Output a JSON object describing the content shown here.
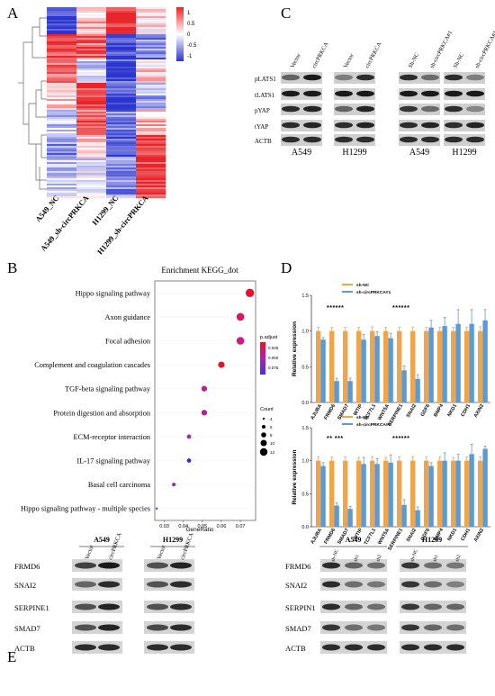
{
  "panels": {
    "A": {
      "letter": "A",
      "columns": [
        "A549_NC",
        "A549_sh-circPRKCA",
        "H1299_NC",
        "H1299_sh-circPRKCA"
      ],
      "colorbar": {
        "ticks": [
          "1",
          "0.5",
          "0",
          "-0.5",
          "-1"
        ],
        "colors": {
          "high": "#e8252a",
          "mid": "#ffffff",
          "low": "#2b35cf"
        }
      }
    },
    "B": {
      "letter": "B",
      "title": "Enrichment KEGG_dot",
      "xlabel": "GeneRatio",
      "legend_padj_title": "p.adjust",
      "legend_padj_ticks": [
        "0.025",
        "0.050",
        "0.075"
      ],
      "legend_count_title": "Count",
      "legend_count_values": [
        "4",
        "6",
        "8",
        "10",
        "12"
      ]
    },
    "C": {
      "letter": "C",
      "left_lanes": [
        "Vector",
        "circPRKCA",
        "Vector",
        "circPRKCA"
      ],
      "right_lanes": [
        "Sh-NC",
        "sh-circPRKCA#1",
        "Sh-NC",
        "sh-circPRKCA#1"
      ],
      "proteins": [
        "pLATS1",
        "tLATS1",
        "pYAP",
        "tYAP",
        "ACTB"
      ],
      "cell_lines": [
        "A549",
        "H1299",
        "A549",
        "H1299"
      ]
    },
    "D": {
      "letter": "D",
      "ylabel": "Relative expression",
      "legend": [
        "sh-NC",
        "sh-circPRKCA#1"
      ],
      "significance_top": [
        "******",
        "******"
      ],
      "significance_bottom": [
        "** ***",
        "******"
      ]
    },
    "E": {
      "letter": "E",
      "left_cells": [
        "A549",
        "H1299"
      ],
      "left_lanes": [
        "Vector",
        "circPRKCA",
        "Vector",
        "circPRKCA"
      ],
      "right_cells": [
        "A549",
        "H1299"
      ],
      "right_lanes": [
        "sh-NC",
        "sh1",
        "sh2",
        "sh-NC",
        "sh1",
        "sh2"
      ],
      "proteins": [
        "FRMD6",
        "SNAI2",
        "SERPINE1",
        "SMAD7",
        "ACTB"
      ],
      "proteins_right": [
        "FRMD6",
        "SNAI2",
        "SERPIN1",
        "SMAD7",
        "ACTB"
      ]
    }
  },
  "chart_data": [
    {
      "type": "scatter",
      "title": "Enrichment KEGG_dot",
      "xlabel": "GeneRatio",
      "xlim": [
        0.025,
        0.078
      ],
      "xticks": [
        "0.03",
        "0.04",
        "0.05",
        "0.06",
        "0.07"
      ],
      "categories": [
        "Hippo signaling pathway",
        "Axon guidance",
        "Focal adhesion",
        "Complement and coagulation cascades",
        "TGF-beta signaling pathway",
        "Protein digestion and absorption",
        "ECM-receptor interaction",
        "IL-17 signaling pathway",
        "Basal cell carcinoma",
        "Hippo signaling pathway - multiple species"
      ],
      "gene_ratio": [
        0.075,
        0.07,
        0.07,
        0.06,
        0.051,
        0.051,
        0.043,
        0.043,
        0.035,
        0.026
      ],
      "count": [
        13,
        12,
        12,
        10,
        9,
        9,
        7,
        7,
        6,
        4
      ],
      "p_adjust_color": [
        "#e8102a",
        "#d8156a",
        "#cf1a80",
        "#e8102a",
        "#c21d96",
        "#b2209e",
        "#9a27b6",
        "#2a2ed6",
        "#9a27b6",
        "#5a2fe0"
      ]
    },
    {
      "type": "bar",
      "ylabel": "Relative expression",
      "ylim": [
        0,
        1.5
      ],
      "yticks": [
        "0.0",
        "0.5",
        "1.0",
        "1.5"
      ],
      "categories": [
        "AJUBA",
        "FRMD6",
        "SMAD7",
        "WTIP",
        "TCF7L1",
        "WNT5A",
        "SERPINE1",
        "SNAI2",
        "GDF6",
        "BMP4",
        "NKD1",
        "CDH1",
        "AXIN2"
      ],
      "series": [
        {
          "name": "sh-NC",
          "values": [
            1.0,
            1.0,
            1.0,
            1.0,
            1.0,
            1.0,
            1.0,
            1.0,
            1.0,
            1.0,
            1.0,
            1.0,
            1.0
          ],
          "errors": [
            0.05,
            0.05,
            0.05,
            0.05,
            0.06,
            0.05,
            0.05,
            0.05,
            0.05,
            0.05,
            0.05,
            0.05,
            0.06
          ]
        },
        {
          "name": "sh-circPRKCA#1",
          "values": [
            0.88,
            0.3,
            0.3,
            0.88,
            0.93,
            0.9,
            0.45,
            0.33,
            1.05,
            1.07,
            1.1,
            1.1,
            1.15
          ],
          "errors": [
            0.03,
            0.04,
            0.04,
            0.07,
            0.06,
            0.07,
            0.06,
            0.06,
            0.1,
            0.12,
            0.2,
            0.2,
            0.15
          ]
        }
      ]
    },
    {
      "type": "bar",
      "ylabel": "Relative expression",
      "ylim": [
        0,
        1.5
      ],
      "yticks": [
        "0.0",
        "0.5",
        "1.0",
        "1.5"
      ],
      "categories": [
        "AJUBA",
        "FRMD6",
        "SMAD7",
        "WTIP",
        "TCF7L1",
        "WNT5A",
        "SERPINE1",
        "SNAI2",
        "GDF6",
        "BMP4",
        "NKD1",
        "CDH1",
        "AXIN2"
      ],
      "series": [
        {
          "name": "sh-NC",
          "values": [
            1.0,
            1.0,
            1.0,
            1.0,
            1.0,
            1.0,
            1.0,
            1.0,
            1.0,
            1.0,
            1.0,
            1.0,
            1.0
          ],
          "errors": [
            0.06,
            0.06,
            0.06,
            0.05,
            0.06,
            0.05,
            0.06,
            0.06,
            0.06,
            0.06,
            0.05,
            0.06,
            0.06
          ]
        },
        {
          "name": "sh-circPRKCA#1",
          "values": [
            0.92,
            0.32,
            0.27,
            0.95,
            0.95,
            0.97,
            0.33,
            0.25,
            0.92,
            1.0,
            1.0,
            1.1,
            1.18
          ],
          "errors": [
            0.05,
            0.04,
            0.04,
            0.1,
            0.08,
            0.12,
            0.08,
            0.05,
            0.05,
            0.12,
            0.1,
            0.15,
            0.04
          ]
        }
      ]
    }
  ]
}
